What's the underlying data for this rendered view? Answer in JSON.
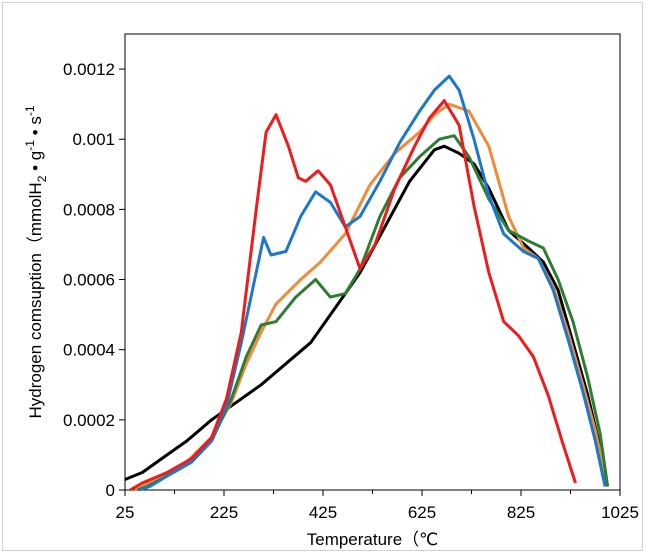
{
  "chart_data": {
    "type": "line",
    "xlabel": "Temperature（℃",
    "ylabel_parts": [
      "Hydrogen comsuption（mmolH",
      "2",
      " • g",
      "-1",
      " • s",
      "-1"
    ],
    "xlim": [
      25,
      1025
    ],
    "ylim": [
      0,
      0.0013
    ],
    "x_ticks": [
      "25",
      "225",
      "425",
      "625",
      "825",
      "1025"
    ],
    "y_ticks": [
      "0",
      "0.0002",
      "0.0004",
      "0.0006",
      "0.0008",
      "0.001",
      "0.0012"
    ],
    "grid": false,
    "series": [
      {
        "color": "#000000",
        "points": [
          [
            25,
            3e-05
          ],
          [
            60,
            5e-05
          ],
          [
            100,
            9e-05
          ],
          [
            150,
            0.00014
          ],
          [
            200,
            0.0002
          ],
          [
            250,
            0.00025
          ],
          [
            300,
            0.0003
          ],
          [
            350,
            0.00036
          ],
          [
            400,
            0.00042
          ],
          [
            450,
            0.00052
          ],
          [
            500,
            0.00062
          ],
          [
            550,
            0.00075
          ],
          [
            600,
            0.00088
          ],
          [
            650,
            0.00097
          ],
          [
            670,
            0.00098
          ],
          [
            700,
            0.00096
          ],
          [
            730,
            0.00093
          ],
          [
            760,
            0.00086
          ],
          [
            800,
            0.00074
          ],
          [
            840,
            0.00069
          ],
          [
            870,
            0.00065
          ],
          [
            900,
            0.00057
          ],
          [
            930,
            0.00042
          ],
          [
            960,
            0.00027
          ],
          [
            980,
            0.00015
          ],
          [
            1000,
            1e-05
          ]
        ]
      },
      {
        "color": "#f08a3c",
        "points": [
          [
            45,
            0
          ],
          [
            60,
            1e-05
          ],
          [
            100,
            4e-05
          ],
          [
            150,
            8e-05
          ],
          [
            200,
            0.00015
          ],
          [
            240,
            0.00025
          ],
          [
            270,
            0.00036
          ],
          [
            300,
            0.00045
          ],
          [
            330,
            0.00053
          ],
          [
            380,
            0.0006
          ],
          [
            420,
            0.00065
          ],
          [
            470,
            0.00073
          ],
          [
            520,
            0.00087
          ],
          [
            570,
            0.00096
          ],
          [
            620,
            0.00102
          ],
          [
            650,
            0.00107
          ],
          [
            680,
            0.0011
          ],
          [
            720,
            0.00108
          ],
          [
            760,
            0.00098
          ],
          [
            800,
            0.00078
          ],
          [
            830,
            0.00069
          ],
          [
            860,
            0.00066
          ],
          [
            890,
            0.00058
          ],
          [
            920,
            0.00045
          ],
          [
            950,
            0.0003
          ],
          [
            975,
            0.00017
          ],
          [
            1000,
            1e-05
          ]
        ]
      },
      {
        "color": "#2e7d32",
        "points": [
          [
            50,
            0
          ],
          [
            70,
            1e-05
          ],
          [
            110,
            4e-05
          ],
          [
            160,
            8e-05
          ],
          [
            200,
            0.00014
          ],
          [
            240,
            0.00026
          ],
          [
            270,
            0.00038
          ],
          [
            300,
            0.00047
          ],
          [
            330,
            0.00048
          ],
          [
            370,
            0.00055
          ],
          [
            410,
            0.0006
          ],
          [
            440,
            0.00055
          ],
          [
            470,
            0.00056
          ],
          [
            500,
            0.00063
          ],
          [
            540,
            0.00078
          ],
          [
            580,
            0.00089
          ],
          [
            620,
            0.00095
          ],
          [
            660,
            0.001
          ],
          [
            690,
            0.00101
          ],
          [
            720,
            0.00095
          ],
          [
            760,
            0.00083
          ],
          [
            800,
            0.00074
          ],
          [
            840,
            0.00071
          ],
          [
            870,
            0.00069
          ],
          [
            900,
            0.0006
          ],
          [
            930,
            0.00048
          ],
          [
            960,
            0.00032
          ],
          [
            985,
            0.00016
          ],
          [
            1000,
            1e-05
          ]
        ]
      },
      {
        "color": "#1f77c8",
        "points": [
          [
            55,
            0
          ],
          [
            75,
            1e-05
          ],
          [
            110,
            4e-05
          ],
          [
            160,
            8e-05
          ],
          [
            200,
            0.00014
          ],
          [
            230,
            0.00024
          ],
          [
            260,
            0.00042
          ],
          [
            290,
            0.00062
          ],
          [
            305,
            0.00072
          ],
          [
            320,
            0.00067
          ],
          [
            350,
            0.00068
          ],
          [
            380,
            0.00078
          ],
          [
            410,
            0.00085
          ],
          [
            440,
            0.00082
          ],
          [
            470,
            0.00075
          ],
          [
            500,
            0.00078
          ],
          [
            540,
            0.00088
          ],
          [
            580,
            0.00099
          ],
          [
            620,
            0.00108
          ],
          [
            650,
            0.00114
          ],
          [
            680,
            0.00118
          ],
          [
            700,
            0.00114
          ],
          [
            730,
            0.001
          ],
          [
            760,
            0.00084
          ],
          [
            790,
            0.00073
          ],
          [
            830,
            0.00068
          ],
          [
            860,
            0.00066
          ],
          [
            890,
            0.00057
          ],
          [
            920,
            0.00043
          ],
          [
            950,
            0.00028
          ],
          [
            975,
            0.00014
          ],
          [
            995,
            1e-05
          ]
        ]
      },
      {
        "color": "#ee1c1c",
        "points": [
          [
            35,
            0
          ],
          [
            60,
            2e-05
          ],
          [
            110,
            5e-05
          ],
          [
            160,
            9e-05
          ],
          [
            200,
            0.00015
          ],
          [
            230,
            0.00026
          ],
          [
            260,
            0.00045
          ],
          [
            290,
            0.0008
          ],
          [
            310,
            0.00102
          ],
          [
            330,
            0.00107
          ],
          [
            355,
            0.00098
          ],
          [
            375,
            0.00089
          ],
          [
            390,
            0.00088
          ],
          [
            415,
            0.00091
          ],
          [
            440,
            0.00087
          ],
          [
            470,
            0.00075
          ],
          [
            500,
            0.00063
          ],
          [
            530,
            0.0007
          ],
          [
            570,
            0.00086
          ],
          [
            610,
            0.00098
          ],
          [
            640,
            0.00106
          ],
          [
            670,
            0.00111
          ],
          [
            700,
            0.00104
          ],
          [
            730,
            0.00081
          ],
          [
            760,
            0.00062
          ],
          [
            790,
            0.00048
          ],
          [
            820,
            0.00044
          ],
          [
            850,
            0.00038
          ],
          [
            880,
            0.00027
          ],
          [
            910,
            0.00013
          ],
          [
            935,
            2e-05
          ]
        ]
      }
    ]
  }
}
